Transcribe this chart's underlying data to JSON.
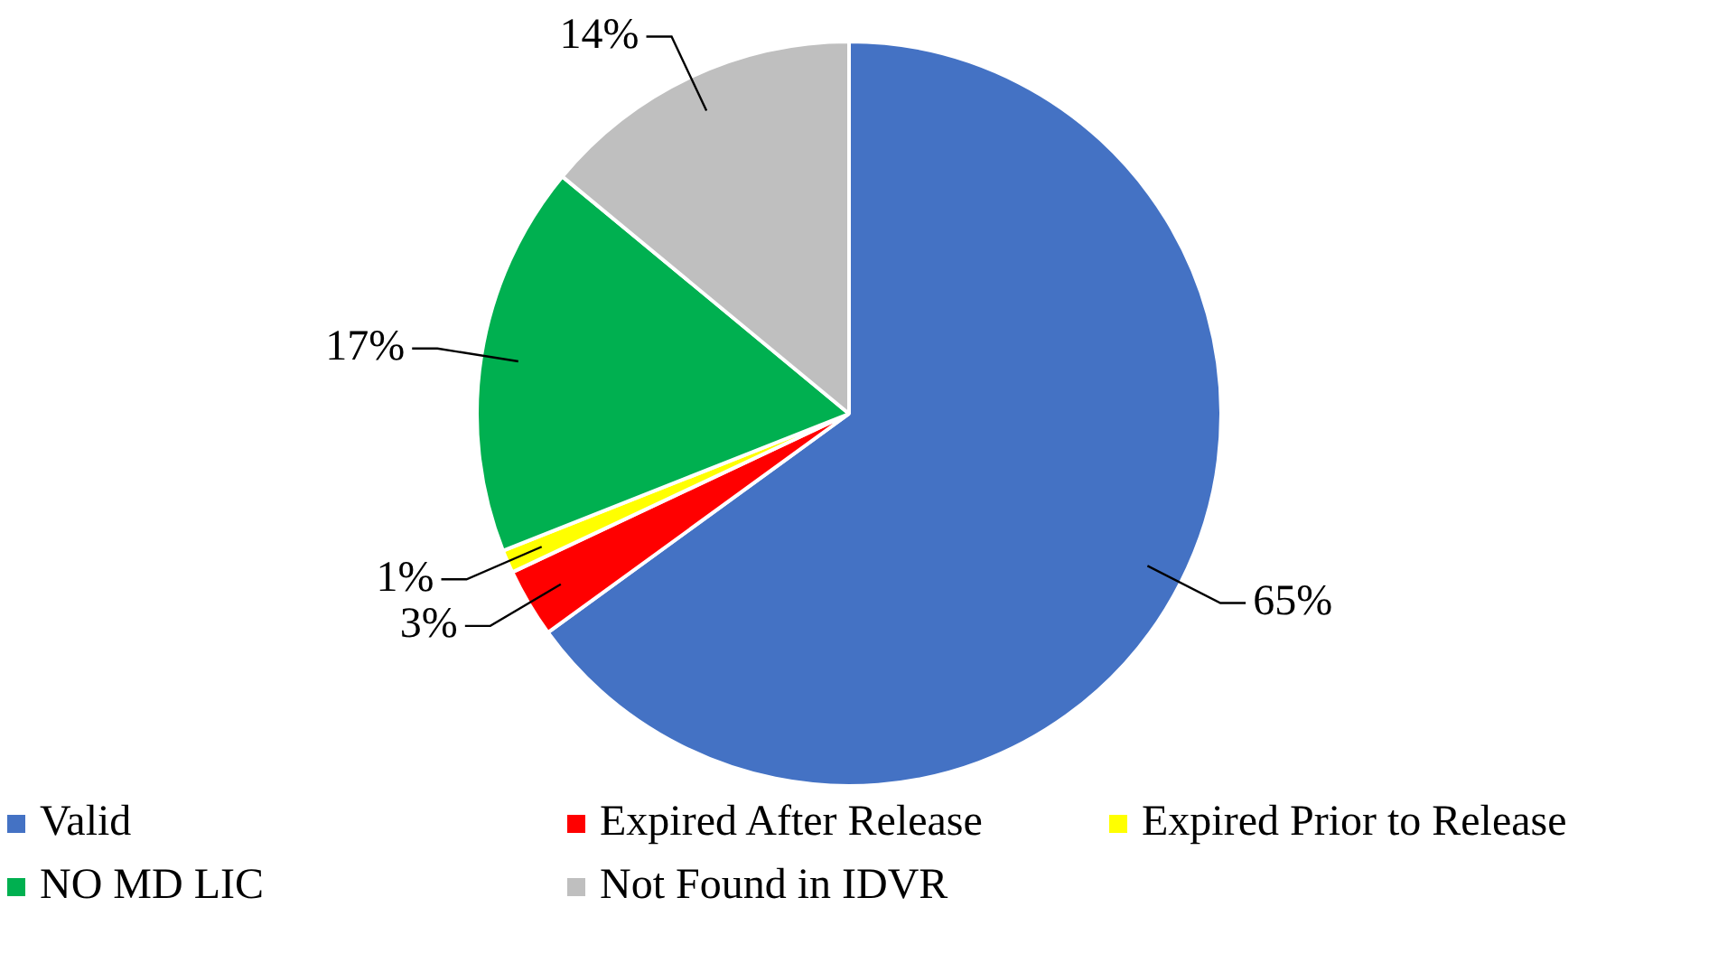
{
  "chart_data": {
    "type": "pie",
    "categories": [
      "Valid",
      "Expired After Release",
      "Expired Prior to Release",
      "NO MD LIC",
      "Not Found in IDVR"
    ],
    "values": [
      65,
      3,
      1,
      17,
      14
    ],
    "colors": [
      "#4472c4",
      "#ff0000",
      "#ffff00",
      "#00b050",
      "#bfbfbf"
    ],
    "value_labels": [
      "65%",
      "3%",
      "1%",
      "17%",
      "14%"
    ],
    "legend": "bottom"
  }
}
